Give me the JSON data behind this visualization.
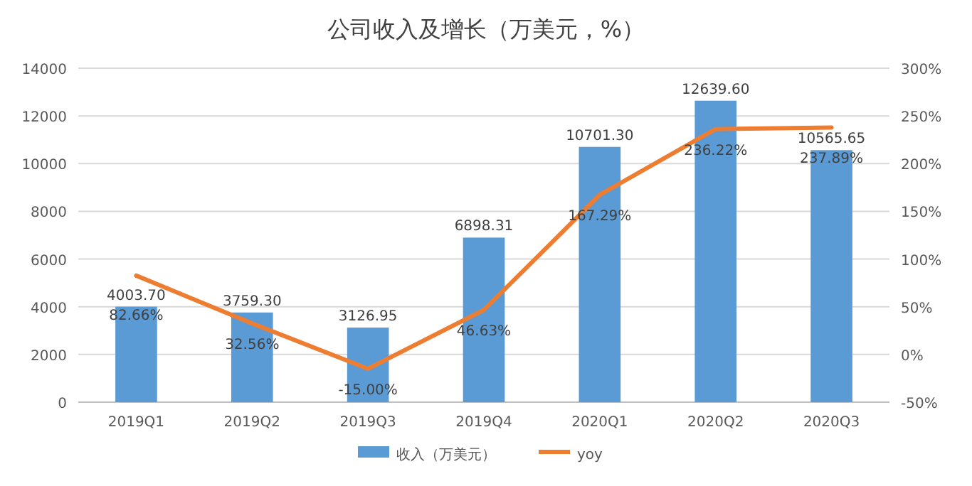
{
  "chart_data": {
    "type": "bar",
    "title": "公司收入及增长（万美元，%）",
    "categories": [
      "2019Q1",
      "2019Q2",
      "2019Q3",
      "2019Q4",
      "2020Q1",
      "2020Q2",
      "2020Q3"
    ],
    "series": [
      {
        "name": "收入（万美元）",
        "color": "#5b9bd5",
        "values": [
          4003.7,
          3759.3,
          3126.95,
          6898.31,
          10701.3,
          12639.6,
          10565.65
        ],
        "value_labels": [
          "4003.70",
          "3759.30",
          "3126.95",
          "6898.31",
          "10701.30",
          "12639.60",
          "10565.65"
        ]
      },
      {
        "name": "yoy",
        "type": "line",
        "axis": "y2",
        "color": "#ed7d31",
        "values": [
          82.66,
          32.56,
          -15.0,
          46.63,
          167.29,
          236.22,
          237.89
        ],
        "value_labels": [
          "82.66%",
          "32.56%",
          "-15.00%",
          "46.63%",
          "167.29%",
          "236.22%",
          "237.89%"
        ]
      }
    ],
    "ylim": [
      0,
      14000
    ],
    "yticks": [
      0,
      2000,
      4000,
      6000,
      8000,
      10000,
      12000,
      14000
    ],
    "y2lim": [
      -50,
      300
    ],
    "y2ticks": [
      {
        "value": -50,
        "label": "-50%"
      },
      {
        "value": 0,
        "label": "0%"
      },
      {
        "value": 50,
        "label": "50%"
      },
      {
        "value": 100,
        "label": "100%"
      },
      {
        "value": 150,
        "label": "150%"
      },
      {
        "value": 200,
        "label": "200%"
      },
      {
        "value": 250,
        "label": "250%"
      },
      {
        "value": 300,
        "label": "300%"
      }
    ],
    "grid": "y",
    "legend": "bottom",
    "marker": "none"
  }
}
